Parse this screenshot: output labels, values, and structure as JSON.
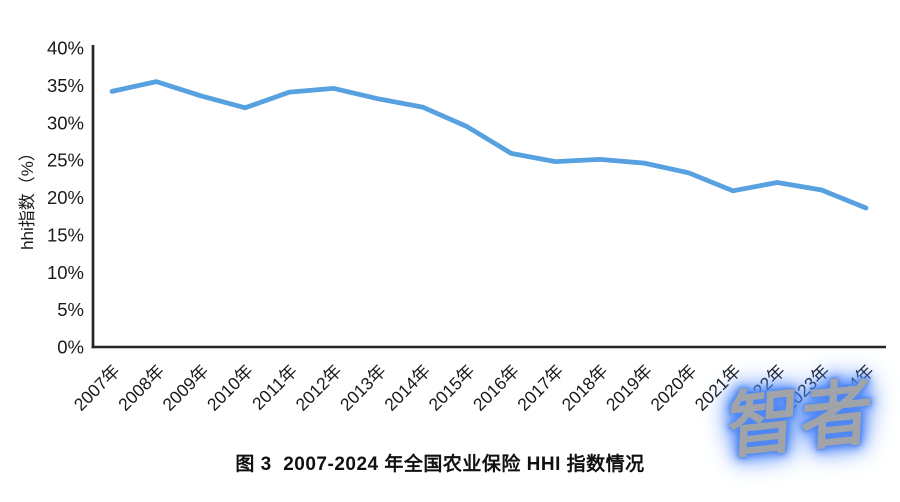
{
  "caption": "图 3  2007-2024 年全国农业保险 HHI 指数情况",
  "watermark": {
    "text": "智者"
  },
  "colors": {
    "line": "#58a1e0",
    "axis": "#262626",
    "label": "#1a1a1a",
    "caption_text": "#111111",
    "watermark_text": "#a0a4a8",
    "watermark_glow": "#4d86f5"
  },
  "chart_data": {
    "type": "line",
    "title": "图 3  2007-2024 年全国农业保险 HHI 指数情况",
    "xlabel": "",
    "ylabel": "hhi指数（%）",
    "categories": [
      "2007年",
      "2008年",
      "2009年",
      "2010年",
      "2011年",
      "2012年",
      "2013年",
      "2014年",
      "2015年",
      "2016年",
      "2017年",
      "2018年",
      "2019年",
      "2020年",
      "2021年",
      "2022年",
      "2023年",
      "2024年"
    ],
    "series": [
      {
        "name": "hhi指数",
        "values": [
          34.2,
          35.5,
          33.6,
          32.0,
          34.1,
          34.6,
          33.2,
          32.1,
          29.5,
          25.9,
          24.8,
          25.1,
          24.6,
          23.3,
          20.9,
          22.0,
          21.0,
          18.6
        ]
      }
    ],
    "ylim": [
      0,
      40
    ],
    "ytick_step": 5,
    "ytick_labels": [
      "0%",
      "5%",
      "10%",
      "15%",
      "20%",
      "25%",
      "30%",
      "35%",
      "40%"
    ],
    "ytick_suffix": "%",
    "grid": false,
    "legend": "none",
    "x_label_rotation": -45
  }
}
